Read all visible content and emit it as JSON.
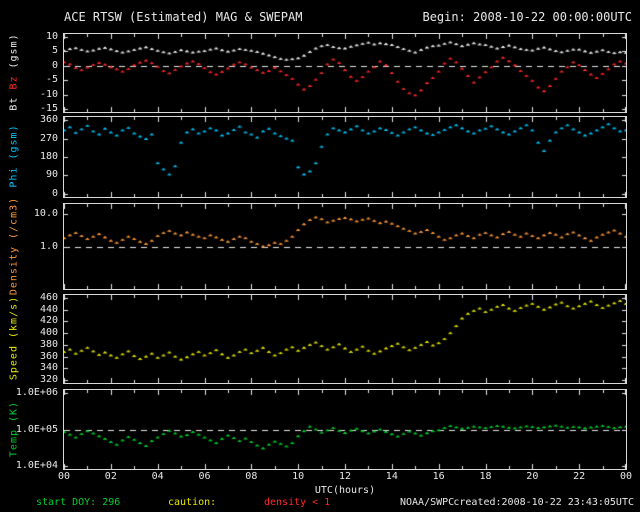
{
  "header": {
    "title": "ACE RTSW (Estimated) MAG & SWEPAM",
    "begin": "Begin: 2008-10-22 00:00:00UTC"
  },
  "footer": {
    "start_doy": "start DOY: 296",
    "caution_label": "caution:",
    "caution_value": "density < 1",
    "agency": "NOAA/SWPC",
    "created": "created:2008-10-22 23:43:05UTC"
  },
  "x_axis": {
    "label": "UTC(hours)",
    "tick_labels": [
      "00",
      "02",
      "04",
      "06",
      "08",
      "10",
      "12",
      "14",
      "16",
      "18",
      "20",
      "22",
      "00"
    ],
    "start_hour": 0,
    "end_hour": 24,
    "step_hours": 0.25
  },
  "colors": {
    "background": "#000000",
    "axis": "#e8e8e8",
    "bt": "#f0f0f0",
    "bz": "#ff2a2a",
    "phi": "#00c8ff",
    "density": "#ff9a3c",
    "speed": "#e8e800",
    "temp": "#00d02a"
  },
  "chart_data": [
    {
      "id": "mag",
      "type": "scatter",
      "ylabel": "Bt Bz (gsm)",
      "label_segments": [
        {
          "text": "Bt ",
          "color": "#f0f0f0"
        },
        {
          "text": "Bz ",
          "color": "#ff2a2a"
        },
        {
          "text": "(gsm)",
          "color": "#f0f0f0"
        }
      ],
      "yscale": "linear",
      "ylim": [
        -16,
        11
      ],
      "yticks": [
        {
          "v": 10,
          "t": "10"
        },
        {
          "v": 5,
          "t": "5"
        },
        {
          "v": 0,
          "t": "0"
        },
        {
          "v": -5,
          "t": "-5"
        },
        {
          "v": -10,
          "t": "-10"
        },
        {
          "v": -15,
          "t": "-15"
        }
      ],
      "reference_line": 0,
      "series": [
        {
          "name": "Bt",
          "color": "#f0f0f0",
          "values": [
            5.2,
            5.8,
            6.1,
            5.5,
            5.0,
            5.3,
            5.9,
            6.2,
            5.7,
            5.1,
            4.6,
            5.0,
            5.5,
            6.0,
            6.4,
            5.8,
            5.2,
            4.7,
            4.3,
            4.8,
            5.4,
            5.0,
            4.6,
            4.9,
            5.1,
            5.6,
            6.0,
            5.4,
            4.9,
            5.3,
            5.8,
            5.5,
            5.2,
            4.8,
            4.2,
            3.6,
            3.0,
            2.4,
            2.1,
            2.3,
            2.6,
            3.5,
            4.8,
            6.0,
            6.8,
            7.2,
            6.5,
            6.1,
            6.0,
            6.6,
            7.1,
            7.6,
            8.0,
            7.4,
            7.8,
            7.5,
            7.2,
            6.5,
            5.8,
            5.2,
            4.6,
            5.5,
            6.3,
            6.8,
            7.0,
            7.6,
            8.1,
            7.5,
            6.8,
            7.3,
            7.8,
            7.4,
            7.2,
            6.6,
            6.0,
            6.5,
            7.0,
            6.4,
            5.8,
            5.5,
            5.3,
            5.9,
            6.3,
            5.7,
            5.1,
            4.7,
            5.2,
            5.6,
            5.6,
            5.0,
            4.5,
            4.9,
            5.4,
            4.8,
            4.4,
            4.7,
            4.5
          ]
        },
        {
          "name": "Bz",
          "color": "#ff2a2a",
          "values": [
            1.2,
            0.5,
            -0.8,
            -1.5,
            -0.6,
            0.3,
            1.0,
            0.4,
            -0.5,
            -1.2,
            -2.0,
            -1.1,
            0.2,
            1.1,
            1.8,
            0.9,
            -0.3,
            -1.8,
            -2.6,
            -1.4,
            -0.2,
            0.8,
            1.5,
            0.6,
            -0.8,
            -2.2,
            -3.0,
            -2.1,
            -0.9,
            0.4,
            1.2,
            0.5,
            -0.6,
            -1.5,
            -2.4,
            -1.8,
            -0.7,
            -1.9,
            -3.2,
            -4.5,
            -6.5,
            -8.2,
            -7.0,
            -4.8,
            -2.5,
            0.5,
            2.2,
            1.0,
            -1.5,
            -3.8,
            -5.2,
            -3.9,
            -2.0,
            -0.5,
            1.5,
            0.2,
            -2.5,
            -5.5,
            -8.0,
            -9.5,
            -10.2,
            -8.5,
            -6.0,
            -4.2,
            -2.0,
            0.8,
            2.5,
            1.2,
            -1.0,
            -3.5,
            -5.8,
            -4.0,
            -2.2,
            -0.5,
            1.5,
            2.8,
            1.6,
            0.2,
            -1.8,
            -3.5,
            -5.2,
            -7.5,
            -8.8,
            -7.0,
            -4.5,
            -2.0,
            -0.5,
            1.2,
            0.2,
            -1.5,
            -3.0,
            -4.2,
            -2.8,
            -1.2,
            0.5,
            1.5,
            0.8
          ]
        }
      ]
    },
    {
      "id": "phi",
      "type": "scatter",
      "ylabel": "Phi (gsm)",
      "label_segments": [
        {
          "text": "Phi (gsm)",
          "color": "#00c8ff"
        }
      ],
      "yscale": "linear",
      "ylim": [
        -15,
        375
      ],
      "yticks": [
        {
          "v": 360,
          "t": "360"
        },
        {
          "v": 270,
          "t": "270"
        },
        {
          "v": 180,
          "t": "180"
        },
        {
          "v": 90,
          "t": "90"
        },
        {
          "v": 0,
          "t": "0"
        }
      ],
      "reference_line": null,
      "series": [
        {
          "name": "Phi",
          "color": "#00c8ff",
          "values": [
            310,
            325,
            298,
            315,
            332,
            305,
            290,
            318,
            300,
            285,
            310,
            322,
            295,
            280,
            268,
            290,
            150,
            120,
            95,
            135,
            250,
            300,
            315,
            295,
            305,
            320,
            310,
            285,
            295,
            312,
            328,
            300,
            290,
            275,
            305,
            318,
            295,
            282,
            270,
            260,
            130,
            95,
            110,
            150,
            230,
            290,
            320,
            310,
            300,
            315,
            330,
            310,
            295,
            305,
            320,
            312,
            298,
            285,
            300,
            315,
            325,
            310,
            295,
            288,
            300,
            312,
            325,
            335,
            320,
            305,
            295,
            310,
            318,
            330,
            315,
            300,
            290,
            305,
            320,
            335,
            310,
            250,
            210,
            260,
            300,
            320,
            335,
            315,
            300,
            285,
            295,
            310,
            325,
            340,
            320,
            305,
            310
          ]
        }
      ]
    },
    {
      "id": "density",
      "type": "scatter",
      "ylabel": "Density (/cm3)",
      "label_segments": [
        {
          "text": "Density (/cm3)",
          "color": "#ff9a3c"
        }
      ],
      "yscale": "log",
      "ylim": [
        0.05,
        20
      ],
      "yticks": [
        {
          "v": 10,
          "t": "10.0"
        },
        {
          "v": 1,
          "t": "1.0"
        }
      ],
      "reference_line": 1,
      "series": [
        {
          "name": "Density",
          "color": "#ff9a3c",
          "values": [
            1.8,
            2.2,
            2.6,
            2.1,
            1.7,
            2.0,
            2.4,
            1.9,
            1.5,
            1.3,
            1.6,
            2.0,
            1.7,
            1.4,
            1.2,
            1.5,
            2.1,
            2.6,
            3.0,
            2.5,
            2.2,
            2.7,
            2.3,
            2.0,
            1.8,
            2.2,
            1.9,
            1.6,
            1.4,
            1.7,
            2.0,
            1.8,
            1.4,
            1.2,
            1.0,
            1.1,
            1.3,
            1.2,
            1.5,
            2.0,
            3.2,
            4.8,
            6.5,
            7.8,
            6.9,
            5.5,
            6.2,
            7.0,
            7.5,
            6.8,
            5.9,
            6.6,
            7.2,
            6.1,
            5.2,
            5.8,
            5.0,
            4.2,
            3.5,
            3.0,
            2.5,
            2.8,
            3.2,
            2.6,
            2.0,
            1.6,
            1.8,
            2.2,
            2.5,
            2.1,
            1.8,
            2.3,
            2.6,
            2.2,
            1.9,
            2.4,
            2.8,
            2.3,
            2.0,
            2.5,
            2.1,
            1.8,
            2.2,
            2.6,
            2.3,
            1.9,
            2.4,
            2.7,
            2.2,
            1.8,
            1.5,
            1.9,
            2.3,
            2.7,
            3.1,
            2.5,
            2.0
          ]
        }
      ]
    },
    {
      "id": "speed",
      "type": "scatter",
      "ylabel": "Speed (km/s)",
      "label_segments": [
        {
          "text": "Speed (km/s)",
          "color": "#e8e800"
        }
      ],
      "yscale": "linear",
      "ylim": [
        315,
        465
      ],
      "yticks": [
        {
          "v": 460,
          "t": "460"
        },
        {
          "v": 440,
          "t": "440"
        },
        {
          "v": 420,
          "t": "420"
        },
        {
          "v": 400,
          "t": "400"
        },
        {
          "v": 380,
          "t": "380"
        },
        {
          "v": 360,
          "t": "360"
        },
        {
          "v": 340,
          "t": "340"
        },
        {
          "v": 320,
          "t": "320"
        }
      ],
      "reference_line": null,
      "series": [
        {
          "name": "Speed",
          "color": "#e8e800",
          "values": [
            368,
            372,
            365,
            370,
            375,
            369,
            363,
            367,
            362,
            358,
            364,
            369,
            361,
            356,
            360,
            365,
            358,
            362,
            367,
            360,
            355,
            359,
            364,
            368,
            362,
            366,
            371,
            364,
            358,
            362,
            368,
            372,
            366,
            370,
            375,
            368,
            362,
            366,
            372,
            376,
            370,
            375,
            380,
            384,
            378,
            372,
            376,
            381,
            374,
            368,
            372,
            377,
            370,
            365,
            369,
            374,
            378,
            382,
            376,
            371,
            375,
            380,
            385,
            379,
            383,
            390,
            400,
            412,
            425,
            433,
            438,
            442,
            436,
            440,
            445,
            448,
            442,
            438,
            443,
            447,
            450,
            445,
            440,
            444,
            449,
            452,
            446,
            442,
            446,
            450,
            454,
            448,
            443,
            447,
            451,
            455,
            450
          ]
        }
      ]
    },
    {
      "id": "temp",
      "type": "scatter",
      "ylabel": "Temp (K)",
      "label_segments": [
        {
          "text": "Temp (K)",
          "color": "#00d02a"
        }
      ],
      "yscale": "log",
      "ylim": [
        8000,
        1250000
      ],
      "yticks": [
        {
          "v": 1000000,
          "t": "1.0E+06"
        },
        {
          "v": 100000,
          "t": "1.0E+05"
        },
        {
          "v": 10000,
          "t": "1.0E+04"
        }
      ],
      "reference_line": 100000,
      "series": [
        {
          "name": "Temp",
          "color": "#00d02a",
          "values": [
            85000,
            72000,
            60000,
            75000,
            90000,
            78000,
            65000,
            55000,
            45000,
            38000,
            50000,
            62000,
            52000,
            42000,
            35000,
            48000,
            60000,
            75000,
            92000,
            78000,
            64000,
            70000,
            85000,
            72000,
            60000,
            50000,
            42000,
            55000,
            68000,
            58000,
            48000,
            56000,
            45000,
            36000,
            30000,
            38000,
            46000,
            40000,
            34000,
            42000,
            65000,
            90000,
            120000,
            100000,
            82000,
            95000,
            110000,
            92000,
            80000,
            94000,
            105000,
            90000,
            78000,
            88000,
            100000,
            86000,
            74000,
            64000,
            76000,
            88000,
            78000,
            68000,
            79000,
            90000,
            95000,
            110000,
            125000,
            115000,
            105000,
            112000,
            120000,
            115000,
            110000,
            118000,
            125000,
            120000,
            112000,
            108000,
            115000,
            122000,
            118000,
            110000,
            115000,
            122000,
            128000,
            120000,
            112000,
            118000,
            115000,
            108000,
            114000,
            120000,
            126000,
            118000,
            110000,
            116000,
            120000
          ]
        }
      ]
    }
  ]
}
